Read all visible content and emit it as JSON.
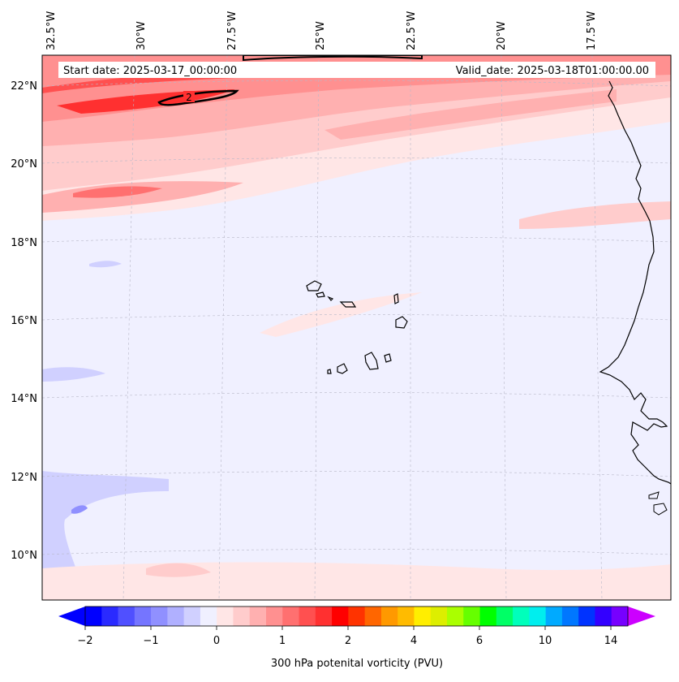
{
  "map": {
    "start_date": "Start date: 2025-03-17_00:00:00",
    "valid_date": "Valid_date: 2025-03-18T01:00:00.00",
    "lon_labels": [
      "32.5°W",
      "30°W",
      "27.5°W",
      "25°W",
      "22.5°W",
      "20°W",
      "17.5°W"
    ],
    "lat_labels": [
      "22°N",
      "20°N",
      "18°N",
      "16°N",
      "14°N",
      "12°N",
      "10°N"
    ],
    "contour_label": "2"
  },
  "colorbar": {
    "title": "300 hPa potenital vorticity (PVU)",
    "tick_labels": [
      "−2",
      "−1",
      "0",
      "1",
      "2",
      "4",
      "6",
      "10",
      "14"
    ],
    "colors": [
      "#0000ff",
      "#2a2aff",
      "#5050ff",
      "#7575ff",
      "#9090ff",
      "#b0b0ff",
      "#d0d0ff",
      "#f0f0ff",
      "#ffe6e6",
      "#ffcccc",
      "#ffb0b0",
      "#ff9090",
      "#ff7070",
      "#ff5050",
      "#ff3030",
      "#ff0000",
      "#ff3300",
      "#ff6600",
      "#ff9900",
      "#ffbb00",
      "#ffee00",
      "#ddee00",
      "#aaff00",
      "#66ff00",
      "#00ff00",
      "#00ff66",
      "#00ffbb",
      "#00eeee",
      "#00aaff",
      "#0077ff",
      "#0033ff",
      "#3300ff",
      "#7700ff"
    ],
    "under_color": "#0000ff",
    "over_color": "#cc00ff"
  }
}
